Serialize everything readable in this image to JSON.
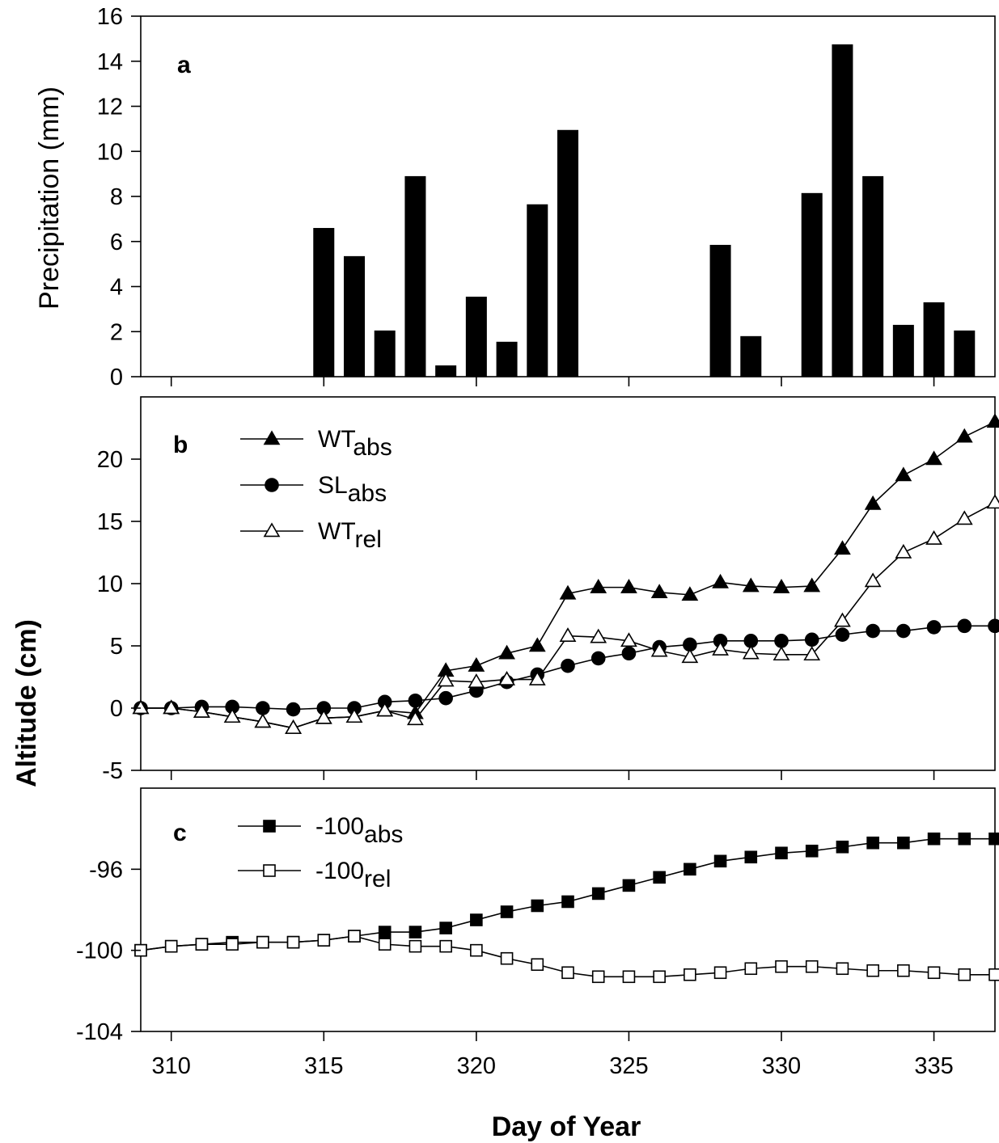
{
  "chart_data": [
    {
      "panel": "a",
      "type": "bar",
      "panel_label": "a",
      "ylabel": "Precipitation (mm)",
      "ylim": [
        0,
        16
      ],
      "yticks": [
        0,
        2,
        4,
        6,
        8,
        10,
        12,
        14,
        16
      ],
      "xlim": [
        309,
        337
      ],
      "x": [
        315,
        316,
        317,
        318,
        319,
        320,
        321,
        322,
        323,
        328,
        329,
        331,
        332,
        333,
        334,
        335,
        336
      ],
      "values": [
        6.6,
        5.35,
        2.05,
        8.9,
        0.5,
        3.55,
        1.55,
        7.65,
        10.95,
        5.85,
        1.8,
        8.15,
        14.75,
        8.9,
        2.3,
        3.3,
        2.05
      ],
      "grid": false
    },
    {
      "panel": "b",
      "type": "line",
      "panel_label": "b",
      "ylim": [
        -5,
        25
      ],
      "yticks": [
        -5,
        0,
        5,
        10,
        15,
        20
      ],
      "ytick_labels": [
        "-5",
        "0",
        "5",
        "10",
        "15",
        "20"
      ],
      "xlim": [
        309,
        337
      ],
      "x": [
        309,
        310,
        311,
        312,
        313,
        314,
        315,
        316,
        317,
        318,
        319,
        320,
        321,
        322,
        323,
        324,
        325,
        326,
        327,
        328,
        329,
        330,
        331,
        332,
        333,
        334,
        335,
        336,
        337
      ],
      "legend_position": "top-left",
      "series": [
        {
          "name_main": "WT",
          "name_sub": "abs",
          "marker": "triangle-filled",
          "values": [
            0,
            0,
            -0.3,
            -0.7,
            -1.1,
            -1.6,
            -0.8,
            -0.7,
            -0.2,
            -0.4,
            3.0,
            3.4,
            4.4,
            5.0,
            9.2,
            9.7,
            9.7,
            9.3,
            9.1,
            10.1,
            9.8,
            9.7,
            9.8,
            12.8,
            16.4,
            18.7,
            20.0,
            21.8,
            23.0
          ]
        },
        {
          "name_main": "SL",
          "name_sub": "abs",
          "marker": "circle-filled",
          "values": [
            0,
            0,
            0.1,
            0.1,
            0,
            -0.1,
            0,
            0,
            0.5,
            0.6,
            0.8,
            1.4,
            2.1,
            2.7,
            3.4,
            4.0,
            4.4,
            4.9,
            5.1,
            5.4,
            5.4,
            5.4,
            5.5,
            5.9,
            6.2,
            6.2,
            6.5,
            6.6,
            6.6
          ]
        },
        {
          "name_main": "WT",
          "name_sub": "rel",
          "marker": "triangle-open",
          "values": [
            0,
            0,
            -0.3,
            -0.7,
            -1.1,
            -1.6,
            -0.8,
            -0.7,
            -0.2,
            -0.9,
            2.2,
            2.1,
            2.3,
            2.3,
            5.8,
            5.7,
            5.4,
            4.6,
            4.1,
            4.7,
            4.4,
            4.3,
            4.3,
            7.0,
            10.2,
            12.5,
            13.6,
            15.2,
            16.5
          ]
        }
      ]
    },
    {
      "panel": "c",
      "type": "line",
      "panel_label": "c",
      "ylim": [
        -104,
        -92
      ],
      "yticks": [
        -104,
        -100,
        -96
      ],
      "ytick_labels": [
        "-104",
        "-100",
        "-96"
      ],
      "xlim": [
        309,
        337
      ],
      "x": [
        309,
        310,
        311,
        312,
        313,
        314,
        315,
        316,
        317,
        318,
        319,
        320,
        321,
        322,
        323,
        324,
        325,
        326,
        327,
        328,
        329,
        330,
        331,
        332,
        333,
        334,
        335,
        336,
        337
      ],
      "legend_position": "top-left",
      "series": [
        {
          "name_main": "-100",
          "name_sub": "abs",
          "marker": "square-filled",
          "values": [
            -100,
            -99.8,
            -99.7,
            -99.6,
            -99.6,
            -99.6,
            -99.5,
            -99.3,
            -99.1,
            -99.1,
            -98.9,
            -98.5,
            -98.1,
            -97.8,
            -97.6,
            -97.2,
            -96.8,
            -96.4,
            -96.0,
            -95.6,
            -95.4,
            -95.2,
            -95.1,
            -94.9,
            -94.7,
            -94.7,
            -94.5,
            -94.5,
            -94.5
          ]
        },
        {
          "name_main": "-100",
          "name_sub": "rel",
          "marker": "square-open",
          "values": [
            -100,
            -99.8,
            -99.7,
            -99.7,
            -99.6,
            -99.6,
            -99.5,
            -99.3,
            -99.7,
            -99.8,
            -99.8,
            -100.0,
            -100.4,
            -100.7,
            -101.1,
            -101.3,
            -101.3,
            -101.3,
            -101.2,
            -101.1,
            -100.9,
            -100.8,
            -100.8,
            -100.9,
            -101.0,
            -101.0,
            -101.1,
            -101.2,
            -101.2
          ]
        }
      ]
    }
  ],
  "xticks": [
    310,
    315,
    320,
    325,
    330,
    335
  ],
  "xtick_labels": [
    "310",
    "315",
    "320",
    "325",
    "330",
    "335"
  ],
  "shared_ylabel": "Altitude (cm)",
  "xlabel": "Day of Year"
}
